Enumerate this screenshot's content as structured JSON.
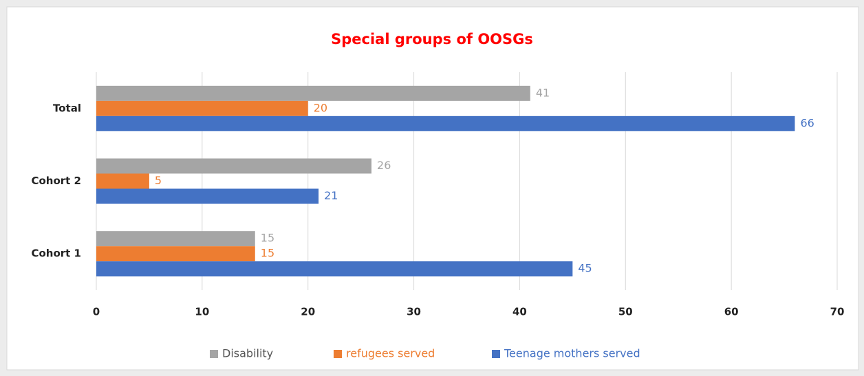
{
  "chart_data": {
    "type": "hbar",
    "title": "Special groups of OOSGs",
    "categories": [
      "Cohort 1",
      "Cohort 2",
      "Total"
    ],
    "series": [
      {
        "name": "Disability",
        "color": "#a5a5a5",
        "values": [
          15,
          26,
          41
        ]
      },
      {
        "name": "refugees served",
        "color": "#ed7d31",
        "values": [
          15,
          5,
          20
        ]
      },
      {
        "name": "Teenage mothers served",
        "color": "#4472c4",
        "values": [
          45,
          21,
          66
        ]
      }
    ],
    "xlim": [
      0,
      70
    ],
    "xticks": [
      0,
      10,
      20,
      30,
      40,
      50,
      60,
      70
    ],
    "grid": true,
    "legend": "bottom"
  }
}
